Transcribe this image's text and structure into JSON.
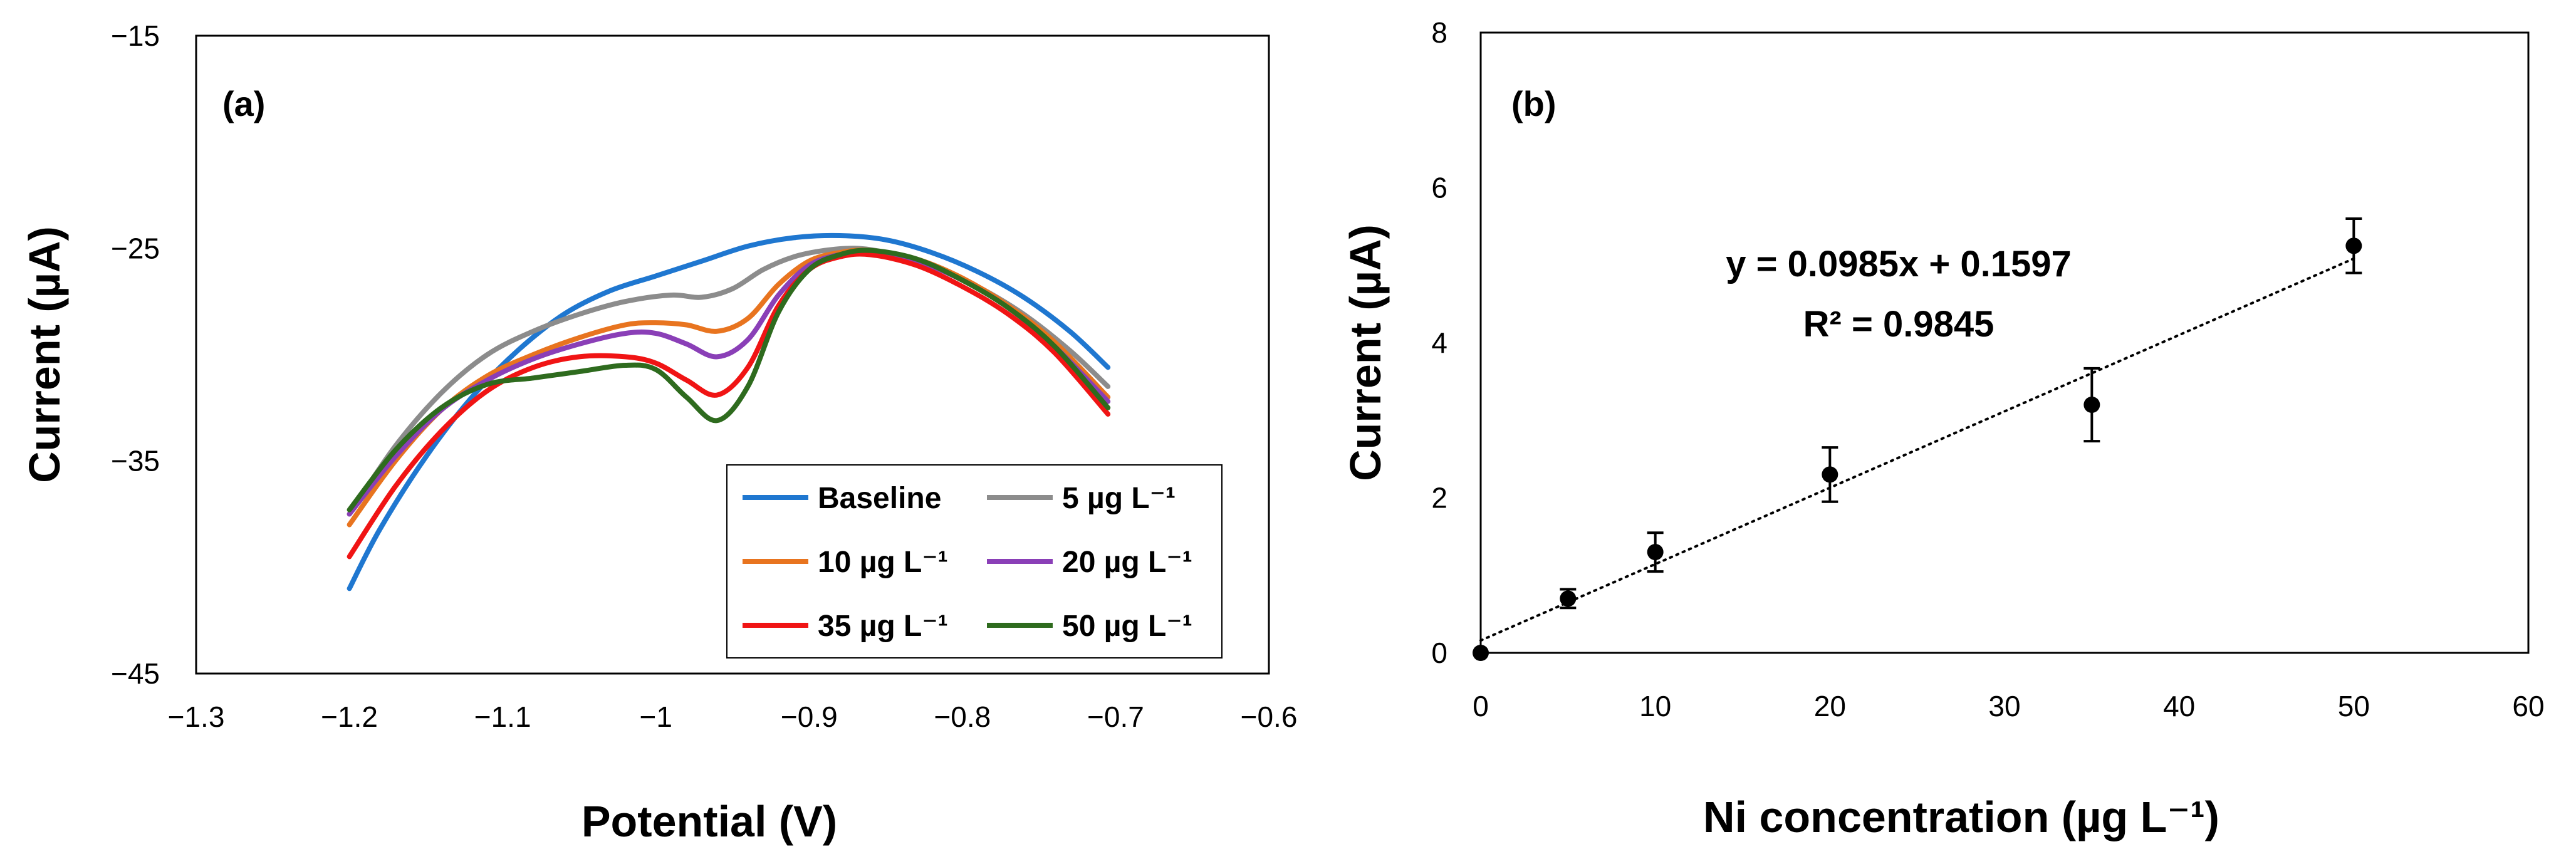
{
  "colors": {
    "axis": "#000000",
    "baseline": "#1f77d0",
    "c5": "#8c8c8c",
    "c10": "#e8741f",
    "c20": "#8a3fb7",
    "c35": "#f01414",
    "c50": "#2e6b1e",
    "points": "#000000",
    "trend": "#000000"
  },
  "chart_data": [
    {
      "type": "line",
      "panel_label": "(a)",
      "title": "",
      "xlabel": "Potential (V)",
      "ylabel": "Current (µA)",
      "xlim": [
        -1.3,
        -0.6
      ],
      "ylim": [
        -45,
        -15
      ],
      "xticks": [
        -1.3,
        -1.2,
        -1.1,
        -1.0,
        -0.9,
        -0.8,
        -0.7,
        -0.6
      ],
      "xtick_labels": [
        "−1.3",
        "−1.2",
        "−1.1",
        "−1",
        "−0.9",
        "−0.8",
        "−0.7",
        "−0.6"
      ],
      "yticks": [
        -15,
        -25,
        -35,
        -45
      ],
      "ytick_labels": [
        "−15",
        "−25",
        "−35",
        "−45"
      ],
      "grid": false,
      "legend": {
        "placement": "bottom-right",
        "entries": [
          "Baseline",
          "5 µg L⁻¹",
          "10 µg L⁻¹",
          "20 µg L⁻¹",
          "35 µg L⁻¹",
          "50 µg L⁻¹"
        ]
      },
      "series": [
        {
          "name": "Baseline",
          "color_key": "baseline",
          "x": [
            -1.2,
            -1.18,
            -1.15,
            -1.12,
            -1.09,
            -1.06,
            -1.03,
            -1.0,
            -0.97,
            -0.94,
            -0.91,
            -0.88,
            -0.85,
            -0.82,
            -0.79,
            -0.76,
            -0.73,
            -0.705
          ],
          "y": [
            -41,
            -38.2,
            -34.8,
            -32.0,
            -29.8,
            -28.1,
            -27.0,
            -26.3,
            -25.6,
            -24.9,
            -24.5,
            -24.4,
            -24.6,
            -25.2,
            -26.1,
            -27.3,
            -28.9,
            -30.6
          ]
        },
        {
          "name": "5 µg L⁻¹",
          "color_key": "c5",
          "x": [
            -1.2,
            -1.17,
            -1.14,
            -1.11,
            -1.08,
            -1.05,
            -1.02,
            -0.99,
            -0.97,
            -0.95,
            -0.93,
            -0.91,
            -0.89,
            -0.87,
            -0.85,
            -0.82,
            -0.79,
            -0.76,
            -0.73,
            -0.705
          ],
          "y": [
            -37.5,
            -34.3,
            -31.8,
            -30.0,
            -28.9,
            -28.1,
            -27.5,
            -27.2,
            -27.3,
            -26.9,
            -26.0,
            -25.4,
            -25.1,
            -25.0,
            -25.2,
            -25.8,
            -26.8,
            -28.1,
            -29.8,
            -31.5
          ]
        },
        {
          "name": "10 µg L⁻¹",
          "color_key": "c10",
          "x": [
            -1.2,
            -1.17,
            -1.14,
            -1.11,
            -1.08,
            -1.05,
            -1.02,
            -1.0,
            -0.98,
            -0.96,
            -0.94,
            -0.92,
            -0.9,
            -0.88,
            -0.86,
            -0.83,
            -0.8,
            -0.77,
            -0.74,
            -0.705
          ],
          "y": [
            -38,
            -35.0,
            -32.6,
            -31.0,
            -30.0,
            -29.2,
            -28.6,
            -28.5,
            -28.6,
            -28.9,
            -28.3,
            -26.7,
            -25.6,
            -25.2,
            -25.1,
            -25.5,
            -26.4,
            -27.7,
            -29.4,
            -32.0
          ]
        },
        {
          "name": "20 µg L⁻¹",
          "color_key": "c20",
          "x": [
            -1.2,
            -1.17,
            -1.14,
            -1.11,
            -1.08,
            -1.05,
            -1.02,
            -1.0,
            -0.98,
            -0.96,
            -0.94,
            -0.92,
            -0.9,
            -0.88,
            -0.86,
            -0.83,
            -0.8,
            -0.77,
            -0.74,
            -0.705
          ],
          "y": [
            -37.5,
            -34.8,
            -32.6,
            -31.2,
            -30.2,
            -29.5,
            -29.0,
            -29.0,
            -29.5,
            -30.1,
            -29.3,
            -27.2,
            -25.8,
            -25.3,
            -25.2,
            -25.6,
            -26.5,
            -27.8,
            -29.6,
            -32.2
          ]
        },
        {
          "name": "35 µg L⁻¹",
          "color_key": "c35",
          "x": [
            -1.2,
            -1.17,
            -1.14,
            -1.11,
            -1.08,
            -1.05,
            -1.02,
            -1.0,
            -0.98,
            -0.96,
            -0.94,
            -0.92,
            -0.9,
            -0.88,
            -0.86,
            -0.83,
            -0.8,
            -0.77,
            -0.74,
            -0.705
          ],
          "y": [
            -39.5,
            -36.2,
            -33.6,
            -31.7,
            -30.6,
            -30.1,
            -30.1,
            -30.4,
            -31.2,
            -31.9,
            -30.6,
            -27.7,
            -26.0,
            -25.4,
            -25.3,
            -25.8,
            -26.8,
            -28.1,
            -29.9,
            -32.8
          ]
        },
        {
          "name": "50 µg L⁻¹",
          "color_key": "c50",
          "x": [
            -1.2,
            -1.17,
            -1.14,
            -1.11,
            -1.08,
            -1.05,
            -1.02,
            -1.0,
            -0.98,
            -0.96,
            -0.94,
            -0.92,
            -0.9,
            -0.88,
            -0.86,
            -0.83,
            -0.8,
            -0.77,
            -0.74,
            -0.705
          ],
          "y": [
            -37.3,
            -34.5,
            -32.5,
            -31.4,
            -31.1,
            -30.8,
            -30.5,
            -30.7,
            -32.0,
            -33.1,
            -31.5,
            -28.0,
            -26.0,
            -25.3,
            -25.1,
            -25.5,
            -26.5,
            -27.8,
            -29.6,
            -32.5
          ]
        }
      ]
    },
    {
      "type": "scatter",
      "panel_label": "(b)",
      "title": "",
      "xlabel": "Ni concentration (µg L⁻¹)",
      "ylabel": "Current (µA)",
      "xlim": [
        0,
        60
      ],
      "ylim": [
        0,
        8
      ],
      "xticks": [
        0,
        10,
        20,
        30,
        40,
        50,
        60
      ],
      "yticks": [
        0,
        2,
        4,
        6,
        8
      ],
      "grid": false,
      "points": {
        "x": [
          0,
          5,
          10,
          20,
          35,
          50
        ],
        "y": [
          0,
          0.7,
          1.3,
          2.3,
          3.2,
          5.25
        ],
        "error": [
          0,
          0.12,
          0.25,
          0.35,
          0.47,
          0.35
        ]
      },
      "trendline": {
        "slope": 0.0985,
        "intercept": 0.1597,
        "x_range": [
          0,
          50
        ],
        "style": "dotted"
      },
      "equation_text": "y = 0.0985x + 0.1597",
      "r2_text": "R² = 0.9845"
    }
  ]
}
